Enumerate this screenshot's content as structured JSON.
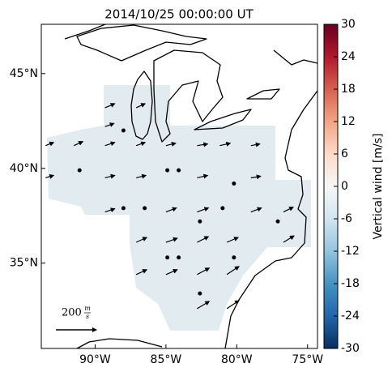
{
  "chart_data": {
    "type": "quiver-map",
    "title": "2014/10/25 00:00:00 UT",
    "xlim": [
      -93.8,
      -74.3
    ],
    "ylim": [
      30.5,
      47.6
    ],
    "xticks": [
      {
        "value": -90,
        "label": "90°W"
      },
      {
        "value": -85,
        "label": "85°W"
      },
      {
        "value": -80,
        "label": "80°W"
      },
      {
        "value": -75,
        "label": "75°W"
      }
    ],
    "yticks": [
      {
        "value": 35,
        "label": "35°N"
      },
      {
        "value": 40,
        "label": "40°N"
      },
      {
        "value": 45,
        "label": "45°N"
      }
    ],
    "colorbar": {
      "label": "Vertical wind [m/s]",
      "lim": [
        -30,
        30
      ],
      "ticks": [
        -30,
        -24,
        -18,
        -12,
        -6,
        0,
        6,
        12,
        18,
        24,
        30
      ]
    },
    "reference_vector": {
      "value": 200,
      "label": "200",
      "unit_top": "m",
      "unit_bottom": "s"
    },
    "color": "#000000",
    "vectors": {
      "lon": [
        -89.3,
        -87.1,
        -89.3,
        -93.5,
        -91.5,
        -89.3,
        -87.1,
        -85.0,
        -82.8,
        -81.2,
        -79.0,
        -93.5,
        -89.3,
        -87.1,
        -82.8,
        -79.0,
        -89.3,
        -85.0,
        -82.8,
        -79.0,
        -76.7,
        -87.1,
        -85.0,
        -82.8,
        -80.7,
        -76.7,
        -87.1,
        -85.0,
        -82.8,
        -80.7,
        -82.8,
        -80.7,
        -88.0,
        -91.1,
        -84.9,
        -84.1,
        -80.2,
        -88.0,
        -86.5,
        -82.6,
        -81.0,
        -77.1,
        -84.9,
        -84.1,
        -80.2,
        -82.6
      ],
      "lat": [
        43.2,
        43.2,
        42.2,
        41.2,
        41.2,
        41.2,
        41.2,
        41.2,
        41.2,
        41.2,
        41.2,
        39.5,
        39.5,
        39.5,
        39.5,
        39.5,
        37.7,
        37.7,
        37.7,
        37.7,
        37.7,
        36.1,
        36.1,
        36.1,
        36.1,
        36.1,
        34.4,
        34.4,
        34.4,
        34.4,
        32.6,
        32.6,
        42.0,
        39.9,
        39.9,
        39.9,
        39.2,
        37.9,
        37.9,
        37.2,
        37.9,
        37.2,
        35.3,
        35.3,
        35.3,
        33.4
      ],
      "u": [
        48,
        44,
        44,
        40,
        44,
        48,
        44,
        48,
        52,
        52,
        44,
        40,
        48,
        48,
        52,
        48,
        48,
        52,
        56,
        52,
        48,
        52,
        56,
        56,
        56,
        52,
        52,
        56,
        60,
        60,
        60,
        60,
        0,
        0,
        0,
        0,
        0,
        0,
        0,
        0,
        0,
        0,
        0,
        0,
        0,
        0
      ],
      "v": [
        20,
        20,
        16,
        16,
        20,
        16,
        16,
        12,
        8,
        12,
        8,
        12,
        12,
        12,
        12,
        8,
        16,
        20,
        20,
        20,
        24,
        24,
        20,
        28,
        24,
        32,
        24,
        24,
        32,
        40,
        36,
        40,
        0,
        0,
        0,
        0,
        0,
        0,
        0,
        0,
        0,
        0,
        0,
        0,
        0,
        0
      ]
    }
  }
}
